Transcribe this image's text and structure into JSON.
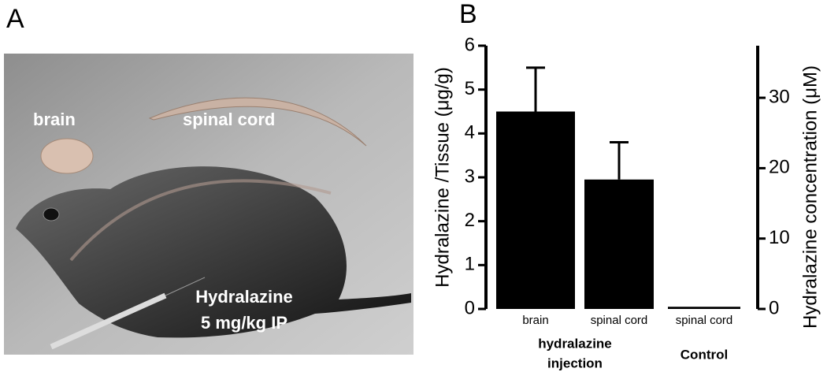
{
  "figure": {
    "panel_a_letter": "A",
    "panel_b_letter": "B",
    "labels": {
      "brain": "brain",
      "spinal_cord": "spinal cord",
      "drug": "Hydralazine",
      "dose": "5 mg/kg IP"
    }
  },
  "chart_data": {
    "type": "bar",
    "categories": [
      "brain",
      "spinal cord",
      "spinal cord"
    ],
    "group_labels": [
      [
        "hydralazine",
        "injection"
      ],
      [
        "Control"
      ]
    ],
    "values": [
      4.5,
      2.95,
      0.05
    ],
    "errors": [
      1.0,
      0.85,
      null
    ],
    "color": "#000000",
    "ylabel": "Hydralazine /Tissue (μg/g)",
    "y2label": "Hydralazine concentration (μM)",
    "ylim": [
      0,
      6
    ],
    "yticks": [
      0,
      1,
      2,
      3,
      4,
      5,
      6
    ],
    "y2lim": [
      0,
      37.4
    ],
    "y2ticks": [
      0,
      10,
      20,
      30
    ]
  }
}
